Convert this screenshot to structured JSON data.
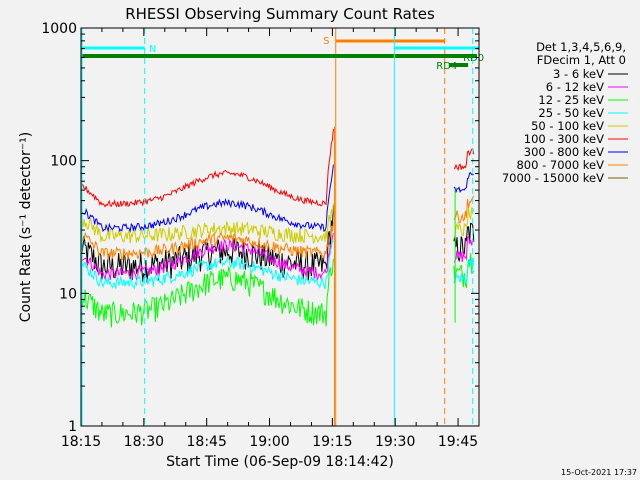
{
  "chart_data": {
    "type": "line",
    "title": "RHESSI Observing Summary Count Rates",
    "xlabel": "Start Time (06-Sep-09 18:14:42)",
    "ylabel": "Count Rate (s⁻¹ detector⁻¹)",
    "yscale": "log",
    "ylim": [
      1,
      1000
    ],
    "xlim_minutes": [
      0,
      95
    ],
    "x_ticks": [
      {
        "label": "18:15",
        "minute": 0
      },
      {
        "label": "18:30",
        "minute": 15
      },
      {
        "label": "18:45",
        "minute": 30
      },
      {
        "label": "19:00",
        "minute": 45
      },
      {
        "label": "19:15",
        "minute": 60
      },
      {
        "label": "19:30",
        "minute": 75
      },
      {
        "label": "19:45",
        "minute": 90
      }
    ],
    "y_ticks": [
      {
        "label": "1",
        "value": 1
      },
      {
        "label": "10",
        "value": 10
      },
      {
        "label": "100",
        "value": 100
      },
      {
        "label": "1000",
        "value": 1000
      }
    ],
    "legend": {
      "placement": "right",
      "header_lines": [
        "Det 1,3,4,5,6,9,",
        "FDecim 1, Att 0"
      ]
    },
    "series": [
      {
        "name": "3 - 6 keV",
        "color": "#000000",
        "quiet_base": 16,
        "hump_peak": 21,
        "spike": 40,
        "late": 22,
        "noise": 0.12
      },
      {
        "name": "6 - 12 keV",
        "color": "#ff00ff",
        "quiet_base": 14,
        "hump_peak": 23,
        "spike": 30,
        "late": 19,
        "noise": 0.05
      },
      {
        "name": "12 - 25 keV",
        "color": "#00ff00",
        "quiet_base": 7,
        "hump_peak": 13,
        "spike": 20,
        "late": 14,
        "noise": 0.1
      },
      {
        "name": "25 - 50 keV",
        "color": "#00ffff",
        "quiet_base": 12,
        "hump_peak": 17,
        "spike": 25,
        "late": 13,
        "noise": 0.05
      },
      {
        "name": "50 - 100 keV",
        "color": "#cccc00",
        "quiet_base": 27,
        "hump_peak": 31,
        "spike": 45,
        "late": 30,
        "noise": 0.06
      },
      {
        "name": "100 - 300 keV",
        "color": "#ff0000",
        "quiet_base": 47,
        "hump_peak": 80,
        "spike": 170,
        "late": 90,
        "noise": 0.025
      },
      {
        "name": "300 - 800 keV",
        "color": "#0000ff",
        "quiet_base": 31,
        "hump_peak": 48,
        "spike": 90,
        "late": 60,
        "noise": 0.03
      },
      {
        "name": "800 - 7000 keV",
        "color": "#ff8000",
        "quiet_base": 20,
        "hump_peak": 26,
        "spike": 35,
        "late": 38,
        "noise": 0.05
      },
      {
        "name": "7000 - 15000 keV",
        "color": "#806000",
        "quiet_base": 1,
        "hump_peak": 1,
        "spike": 1,
        "late": 1,
        "noise": 0
      }
    ],
    "markers": [
      {
        "label": "N",
        "color": "#00ffff"
      },
      {
        "label": "S",
        "color": "#ff8000"
      },
      {
        "label": "RD0",
        "color": "#008000"
      },
      {
        "label": "RD4",
        "color": "#008000"
      }
    ],
    "footer_date": "15-Oct-2021 17:37"
  }
}
